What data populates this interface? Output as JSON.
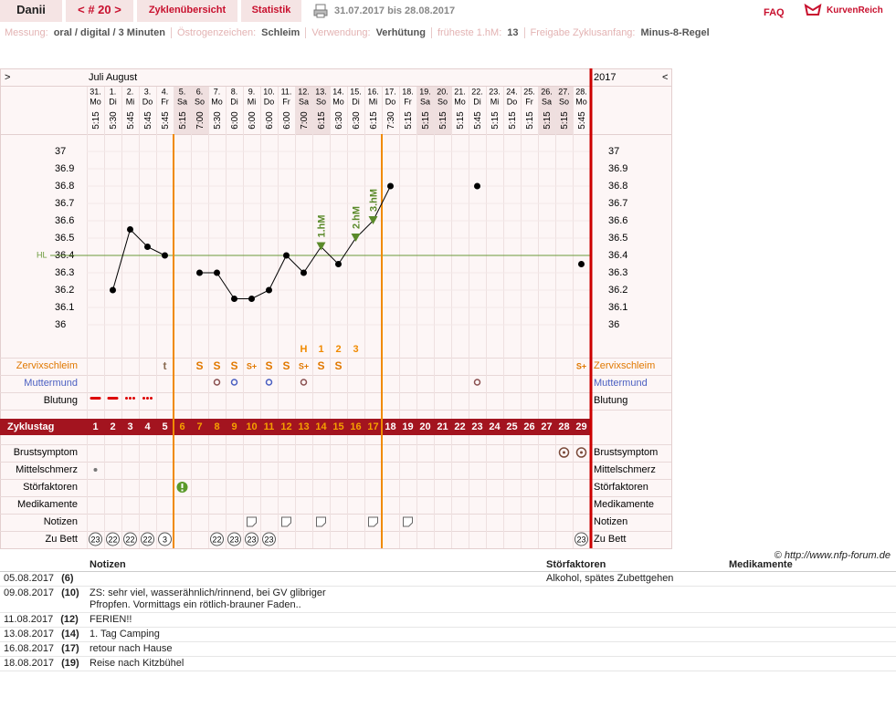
{
  "header": {
    "user": "Danii",
    "cycle": "< # 20 >",
    "tabs": [
      "Zyklenübersicht",
      "Statistik"
    ],
    "date_range": "31.07.2017 bis 28.08.2017",
    "faq": "FAQ",
    "logo": "KurvenReich"
  },
  "info": [
    {
      "label": "Messung:",
      "value": "oral / digital / 3 Minuten"
    },
    {
      "label": "Östrogenzeichen:",
      "value": "Schleim"
    },
    {
      "label": "Verwendung:",
      "value": "Verhütung"
    },
    {
      "label": "früheste 1.hM:",
      "value": "13"
    },
    {
      "label": "Freigabe Zyklusanfang:",
      "value": "Minus-8-Regel"
    }
  ],
  "chart_data": {
    "type": "line",
    "nav_prev": ">",
    "nav_next": "<",
    "months": "Juli August",
    "year": "2017",
    "categories": [
      "31.",
      "1.",
      "2.",
      "3.",
      "4.",
      "5.",
      "6.",
      "7.",
      "8.",
      "9.",
      "10.",
      "11.",
      "12.",
      "13.",
      "14.",
      "15.",
      "16.",
      "17.",
      "18.",
      "19.",
      "20.",
      "21.",
      "22.",
      "23.",
      "24.",
      "25.",
      "26.",
      "27.",
      "28."
    ],
    "weekdays": [
      "Mo",
      "Di",
      "Mi",
      "Do",
      "Fr",
      "Sa",
      "So",
      "Mo",
      "Di",
      "Mi",
      "Do",
      "Fr",
      "Sa",
      "So",
      "Mo",
      "Di",
      "Mi",
      "Do",
      "Fr",
      "Sa",
      "So",
      "Mo",
      "Di",
      "Mi",
      "Do",
      "Fr",
      "Sa",
      "So",
      "Mo"
    ],
    "times": [
      "5:15",
      "5:30",
      "5:45",
      "5:45",
      "5:45",
      "5:15",
      "7:00",
      "5:30",
      "6:00",
      "6:00",
      "6:00",
      "6:00",
      "7:00",
      "6:15",
      "6:30",
      "6:30",
      "6:15",
      "7:30",
      "5:15",
      "5:15",
      "5:15",
      "5:15",
      "5:45",
      "5:15",
      "5:15",
      "5:15",
      "5:15",
      "5:15",
      "5:45"
    ],
    "values": [
      null,
      36.2,
      36.55,
      36.45,
      36.4,
      null,
      36.3,
      36.3,
      36.15,
      36.15,
      36.2,
      36.4,
      36.3,
      36.45,
      36.35,
      36.5,
      36.6,
      36.8,
      null,
      null,
      null,
      null,
      36.8,
      null,
      null,
      null,
      null,
      null,
      36.35
    ],
    "color": "#000000",
    "hm_labels": [
      null,
      null,
      null,
      null,
      null,
      null,
      null,
      null,
      null,
      null,
      null,
      null,
      null,
      "1.hM",
      null,
      "2.hM",
      "3.hM",
      null,
      null,
      null,
      null,
      null,
      null,
      null,
      null,
      null,
      null,
      null,
      null
    ],
    "hm_color": "#5a8a2a",
    "phase_labels": [
      null,
      null,
      null,
      null,
      null,
      null,
      null,
      null,
      null,
      null,
      null,
      null,
      "H",
      "1",
      "2",
      "3",
      null,
      null,
      null,
      null,
      null,
      null,
      null,
      null,
      null,
      null,
      null,
      null,
      null
    ],
    "ylim": [
      35.8,
      37.1
    ],
    "yticks": [
      36,
      36.1,
      36.2,
      36.3,
      36.4,
      36.5,
      36.6,
      36.7,
      36.8,
      36.9,
      37
    ],
    "coverline": {
      "value": 36.4,
      "label": "HL",
      "color": "#6a9a3a"
    }
  },
  "rows_top": [
    {
      "label": "Zervixschleim",
      "color": "#e07800",
      "entries": [
        null,
        null,
        null,
        null,
        "t",
        null,
        "S",
        "S",
        "S",
        "S+",
        "S",
        "S",
        "S+",
        "S",
        "S",
        null,
        null,
        null,
        null,
        null,
        null,
        null,
        null,
        null,
        null,
        null,
        null,
        null,
        "S+"
      ]
    },
    {
      "label": "Muttermund",
      "color": "#4a5fc1"
    },
    {
      "label": "Blutung",
      "color": "#000000"
    }
  ],
  "cycle_day": {
    "label": "Zyklustag",
    "days": [
      1,
      2,
      3,
      4,
      5,
      6,
      7,
      8,
      9,
      10,
      11,
      12,
      13,
      14,
      15,
      16,
      17,
      18,
      19,
      20,
      21,
      22,
      23,
      24,
      25,
      26,
      27,
      28,
      29
    ]
  },
  "rows_bottom": [
    {
      "label": "Brustsymptom"
    },
    {
      "label": "Mittelschmerz"
    },
    {
      "label": "Störfaktoren"
    },
    {
      "label": "Medikamente"
    },
    {
      "label": "Notizen"
    },
    {
      "label": "Zu Bett",
      "entries": [
        23,
        22,
        22,
        22,
        3,
        null,
        null,
        22,
        23,
        23,
        23,
        null,
        null,
        null,
        null,
        null,
        null,
        null,
        null,
        null,
        null,
        null,
        null,
        null,
        null,
        null,
        null,
        null,
        23
      ]
    }
  ],
  "copyright": "© http://www.nfp-forum.de",
  "notes": {
    "columns": [
      "Notizen",
      "Störfaktoren",
      "Medikamente"
    ],
    "rows": [
      {
        "date": "05.08.2017",
        "day": "(6)",
        "note": null,
        "stoer": "Alkohol, spätes Zubettgehen",
        "med": null
      },
      {
        "date": "09.08.2017",
        "day": "(10)",
        "note": "ZS: sehr viel, wasserähnlich/rinnend, bei GV glibriger\nPfropfen. Vormittags ein rötlich-brauner Faden..",
        "stoer": null,
        "med": null
      },
      {
        "date": "11.08.2017",
        "day": "(12)",
        "note": "FERIEN!!",
        "stoer": null,
        "med": null
      },
      {
        "date": "13.08.2017",
        "day": "(14)",
        "note": "1. Tag Camping",
        "stoer": null,
        "med": null
      },
      {
        "date": "16.08.2017",
        "day": "(17)",
        "note": "retour nach Hause",
        "stoer": null,
        "med": null
      },
      {
        "date": "18.08.2017",
        "day": "(19)",
        "note": "Reise nach Kitzbühel",
        "stoer": null,
        "med": null
      }
    ]
  }
}
